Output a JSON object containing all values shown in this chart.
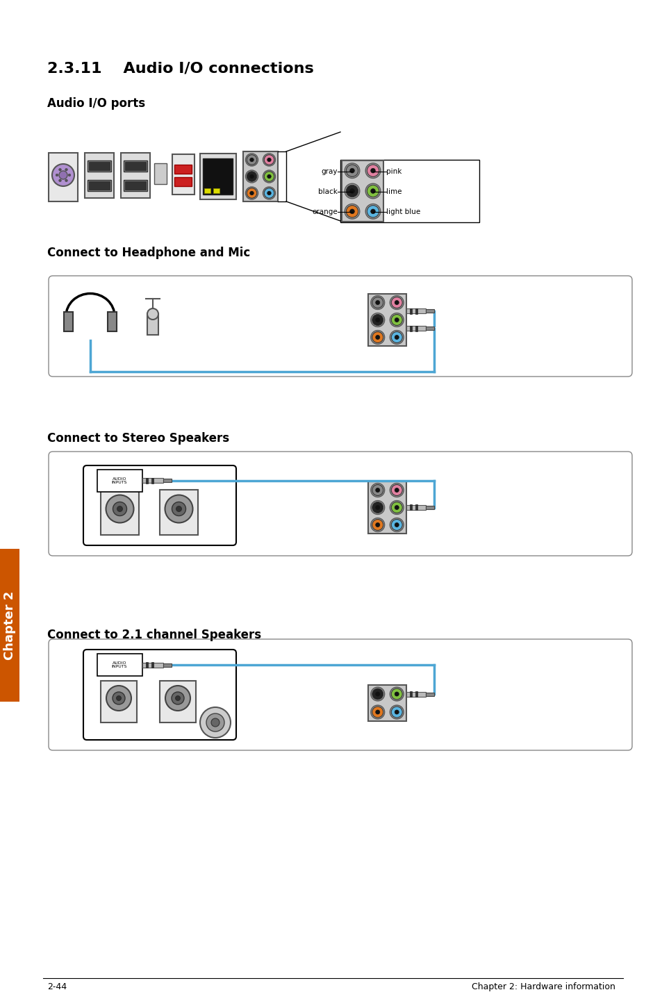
{
  "title": "2.3.11    Audio I/O connections",
  "subtitle1": "Audio I/O ports",
  "subtitle2": "Connect to Headphone and Mic",
  "subtitle3": "Connect to Stereo Speakers",
  "subtitle4": "Connect to 2.1 channel Speakers",
  "footer_left": "2-44",
  "footer_right": "Chapter 2: Hardware information",
  "bg_color": "#ffffff",
  "text_color": "#000000",
  "blue_wire": "#4da6d4",
  "port_colors": {
    "orange": "#e07820",
    "light_blue": "#5ab4e0",
    "black": "#222222",
    "lime": "#80c040",
    "gray": "#888888",
    "pink": "#e080a0"
  }
}
